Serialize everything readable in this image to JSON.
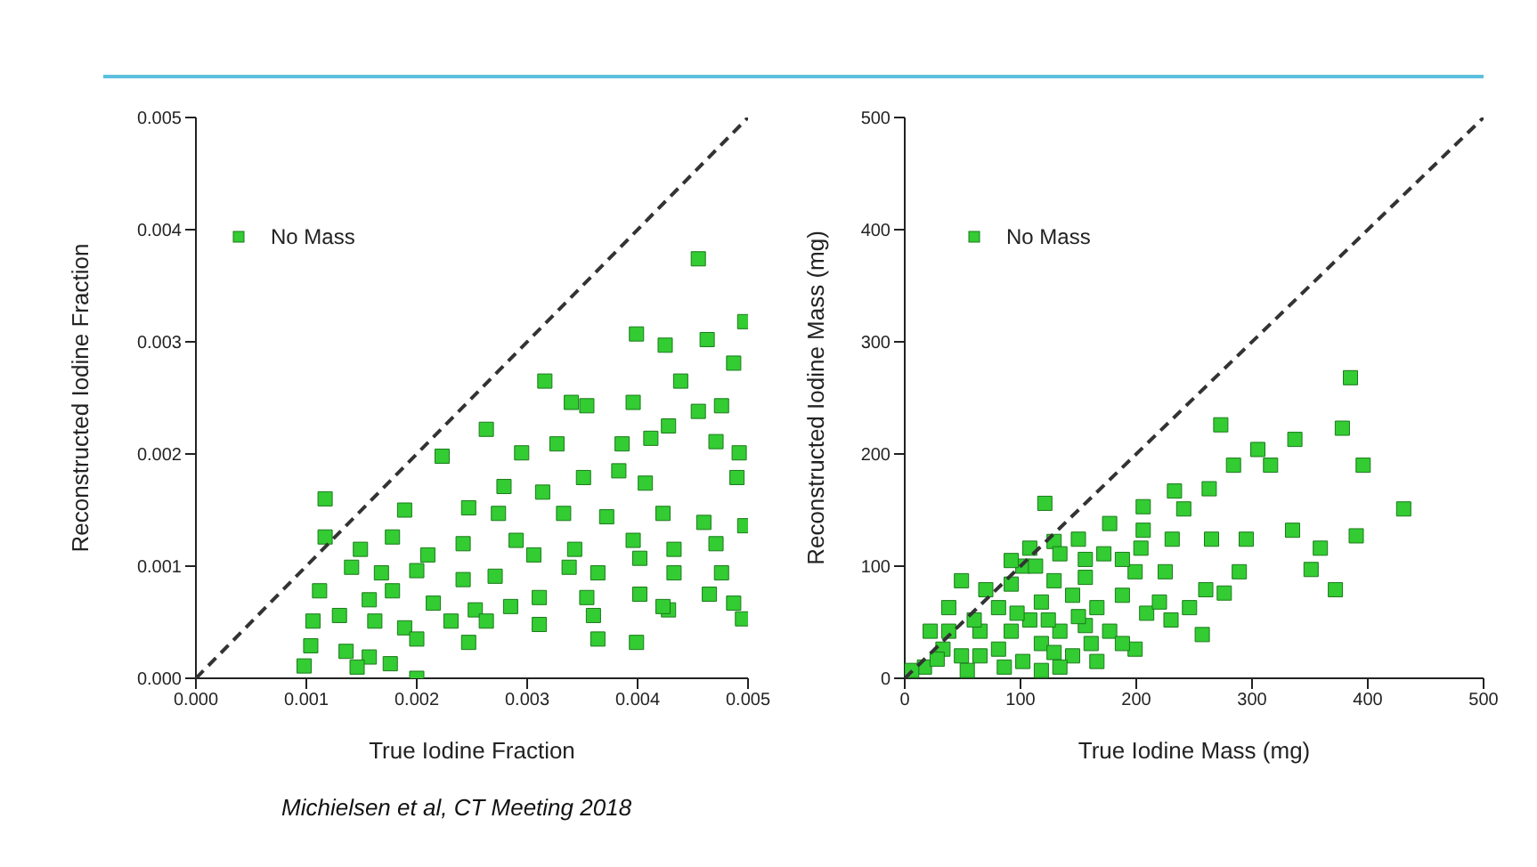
{
  "chart_data": [
    {
      "type": "scatter",
      "xlabel": "True Iodine Fraction",
      "ylabel": "Reconstructed Iodine Fraction",
      "xlim": [
        0,
        0.005
      ],
      "ylim": [
        0,
        0.005
      ],
      "xticks": [
        {
          "value": 0,
          "label": "0.000"
        },
        {
          "value": 0.001,
          "label": "0.001"
        },
        {
          "value": 0.002,
          "label": "0.002"
        },
        {
          "value": 0.003,
          "label": "0.003"
        },
        {
          "value": 0.004,
          "label": "0.004"
        },
        {
          "value": 0.005,
          "label": "0.005"
        }
      ],
      "yticks": [
        {
          "value": 0,
          "label": "0.000"
        },
        {
          "value": 0.001,
          "label": "0.001"
        },
        {
          "value": 0.002,
          "label": "0.002"
        },
        {
          "value": 0.003,
          "label": "0.003"
        },
        {
          "value": 0.004,
          "label": "0.004"
        },
        {
          "value": 0.005,
          "label": "0.005"
        }
      ],
      "legend": "top left",
      "marker": "square",
      "grid": false,
      "annotations": [
        "Michielsen et al, CT Meeting 2018"
      ],
      "series": [
        {
          "name": "No Mass",
          "color": "#33cc33",
          "x": [
            0.00455,
            0.00399,
            0.00463,
            0.00497,
            0.00425,
            0.00487,
            0.00316,
            0.00439,
            0.0034,
            0.00354,
            0.00396,
            0.00455,
            0.00476,
            0.00263,
            0.00428,
            0.00295,
            0.00223,
            0.00327,
            0.00386,
            0.00412,
            0.00492,
            0.00471,
            0.00351,
            0.00383,
            0.00407,
            0.0049,
            0.00279,
            0.00314,
            0.00117,
            0.00189,
            0.00247,
            0.00274,
            0.00333,
            0.00372,
            0.00423,
            0.0046,
            0.00497,
            0.00117,
            0.00149,
            0.00178,
            0.0021,
            0.00242,
            0.0029,
            0.00306,
            0.00343,
            0.00396,
            0.00402,
            0.00433,
            0.00471,
            0.00476,
            0.00433,
            0.00364,
            0.00338,
            0.00271,
            0.00242,
            0.002,
            0.00168,
            0.00141,
            0.00112,
            0.00157,
            0.00178,
            0.00215,
            0.00253,
            0.00285,
            0.00311,
            0.00354,
            0.00402,
            0.00428,
            0.00487,
            0.00495,
            0.00465,
            0.00106,
            0.0013,
            0.00162,
            0.00189,
            0.00231,
            0.00263,
            0.00311,
            0.0036,
            0.00423,
            0.002,
            0.00247,
            0.00364,
            0.00399,
            0.00104,
            0.00136,
            0.00157,
            0.00176,
            0.00098,
            0.00146,
            0.002
          ],
          "values": [
            0.00374,
            0.00307,
            0.00302,
            0.00318,
            0.00297,
            0.00281,
            0.00265,
            0.00265,
            0.00246,
            0.00243,
            0.00246,
            0.00238,
            0.00243,
            0.00222,
            0.00225,
            0.00201,
            0.00198,
            0.00209,
            0.00209,
            0.00214,
            0.00201,
            0.00211,
            0.00179,
            0.00185,
            0.00174,
            0.00179,
            0.00171,
            0.00166,
            0.0016,
            0.0015,
            0.00152,
            0.00147,
            0.00147,
            0.00144,
            0.00147,
            0.00139,
            0.00136,
            0.00126,
            0.00115,
            0.00126,
            0.0011,
            0.0012,
            0.00123,
            0.0011,
            0.00115,
            0.00123,
            0.00107,
            0.00115,
            0.0012,
            0.00094,
            0.00094,
            0.00094,
            0.00099,
            0.00091,
            0.00088,
            0.00096,
            0.00094,
            0.00099,
            0.00078,
            0.0007,
            0.00078,
            0.00067,
            0.00061,
            0.00064,
            0.00072,
            0.00072,
            0.00075,
            0.00061,
            0.00067,
            0.00053,
            0.00075,
            0.00051,
            0.00056,
            0.00051,
            0.00045,
            0.00051,
            0.00051,
            0.00048,
            0.00056,
            0.00064,
            0.00035,
            0.00032,
            0.00035,
            0.00032,
            0.00029,
            0.00024,
            0.00019,
            0.00013,
            0.00011,
            0.0001,
            0
          ]
        },
        {
          "type": "line",
          "color": "#333333",
          "line_style": "dashed",
          "marker": "none",
          "x": [
            0,
            0.005
          ],
          "values": [
            0,
            0.005
          ]
        }
      ]
    },
    {
      "type": "scatter",
      "xlabel": "True Iodine Mass (mg)",
      "ylabel": "Reconstructed Iodine Mass (mg)",
      "xlim": [
        0,
        500
      ],
      "ylim": [
        0,
        500
      ],
      "xticks": [
        0,
        100,
        200,
        300,
        400,
        500
      ],
      "yticks": [
        0,
        100,
        200,
        300,
        400,
        500
      ],
      "legend": "top left",
      "marker": "square",
      "grid": false,
      "series": [
        {
          "name": "No Mass",
          "color": "#33cc33",
          "x": [
            385,
            378,
            273,
            337,
            305,
            284,
            316,
            396,
            431,
            121,
            206,
            233,
            263,
            241,
            390,
            335,
            295,
            265,
            231,
            206,
            359,
            351,
            289,
            225,
            260,
            276,
            372,
            257,
            199,
            177,
            156,
            129,
            102,
            49,
            81,
            118,
            145,
            166,
            188,
            209,
            230,
            199,
            166,
            38,
            22,
            33,
            17,
            49,
            65,
            81,
            92,
            102,
            118,
            134,
            145,
            156,
            177,
            54,
            86,
            118,
            134,
            108,
            70,
            92,
            129,
            156,
            113,
            134,
            150,
            172,
            188,
            204,
            60,
            38,
            97,
            124,
            150,
            65,
            28,
            6,
            129,
            161,
            188,
            220,
            246,
            108,
            92
          ],
          "values": [
            268,
            223,
            226,
            213,
            204,
            190,
            190,
            190,
            151,
            156,
            153,
            167,
            169,
            151,
            127,
            132,
            124,
            124,
            124,
            132,
            116,
            97,
            95,
            95,
            79,
            76,
            79,
            39,
            95,
            138,
            106,
            122,
            100,
            87,
            63,
            68,
            74,
            63,
            74,
            58,
            52,
            26,
            15,
            63,
            42,
            26,
            10,
            20,
            42,
            26,
            42,
            15,
            31,
            42,
            20,
            47,
            42,
            7,
            10,
            7,
            10,
            52,
            79,
            84,
            87,
            90,
            100,
            111,
            124,
            111,
            106,
            116,
            52,
            42,
            58,
            52,
            55,
            20,
            17,
            7,
            23,
            31,
            31,
            68,
            63,
            116,
            105
          ]
        },
        {
          "type": "line",
          "color": "#333333",
          "line_style": "dashed",
          "marker": "none",
          "x": [
            0,
            500
          ],
          "values": [
            0,
            500
          ]
        }
      ]
    }
  ]
}
